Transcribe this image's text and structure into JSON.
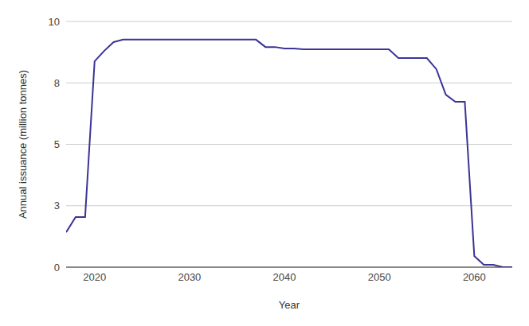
{
  "chart_data": {
    "type": "line",
    "x_label": "Year",
    "y_label": "Annual issuance (million tonnes)",
    "x": [
      2017,
      2018,
      2019,
      2020,
      2021,
      2022,
      2023,
      2024,
      2025,
      2026,
      2027,
      2028,
      2029,
      2030,
      2031,
      2032,
      2033,
      2034,
      2035,
      2036,
      2037,
      2038,
      2039,
      2040,
      2041,
      2042,
      2043,
      2044,
      2045,
      2046,
      2047,
      2048,
      2049,
      2050,
      2051,
      2052,
      2053,
      2054,
      2055,
      2056,
      2057,
      2058,
      2059,
      2060,
      2061,
      2062,
      2063,
      2064
    ],
    "values": [
      1.42,
      2.04,
      2.04,
      8.38,
      8.8,
      9.16,
      9.26,
      9.26,
      9.26,
      9.26,
      9.26,
      9.26,
      9.26,
      9.26,
      9.26,
      9.26,
      9.26,
      9.26,
      9.26,
      9.26,
      9.26,
      8.96,
      8.96,
      8.9,
      8.9,
      8.87,
      8.87,
      8.87,
      8.87,
      8.87,
      8.87,
      8.87,
      8.87,
      8.87,
      8.87,
      8.51,
      8.51,
      8.51,
      8.51,
      8.06,
      7.02,
      6.73,
      6.73,
      0.45,
      0.1,
      0.1,
      0,
      0
    ],
    "color": "#3b3396",
    "xlim": [
      2017,
      2064
    ],
    "xticks": [
      2020,
      2030,
      2040,
      2050,
      2060
    ],
    "ylim": [
      0,
      10
    ],
    "yticks": [
      0,
      {
        "value": 2.5,
        "label": "3"
      },
      5,
      {
        "value": 7.5,
        "label": "8"
      },
      10
    ],
    "grid": true
  }
}
